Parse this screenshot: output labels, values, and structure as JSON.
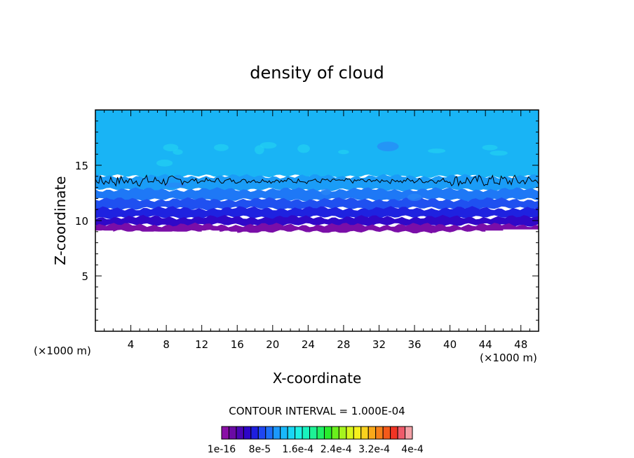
{
  "chart_data": {
    "type": "heatmap",
    "title": "density of cloud",
    "xlabel": "X-coordinate",
    "ylabel": "Z-coordinate",
    "x_unit": "(×1000 m)",
    "y_unit": "(×1000 m)",
    "xlim": [
      0,
      50
    ],
    "ylim": [
      0,
      20
    ],
    "x_ticks": [
      4,
      8,
      12,
      16,
      20,
      24,
      28,
      32,
      36,
      40,
      44,
      48
    ],
    "x_tick_labels": [
      "4",
      "8",
      "12",
      "16",
      "20",
      "24",
      "28",
      "32",
      "36",
      "40",
      "44",
      "48"
    ],
    "y_ticks": [
      5,
      10,
      15
    ],
    "y_tick_labels": [
      "5",
      "10",
      "15"
    ],
    "contour_interval_label": "CONTOUR INTERVAL = 1.000E-04",
    "colorbar": {
      "tick_labels": [
        "1e-16",
        "8e-5",
        "1.6e-4",
        "2.4e-4",
        "3.2e-4",
        "4e-4"
      ],
      "colors": [
        "#8a0fa6",
        "#6a0aa4",
        "#4a05b4",
        "#2d04c8",
        "#1e1ee0",
        "#1f46f2",
        "#1e6ef8",
        "#1b98fb",
        "#19b8fa",
        "#19d6f4",
        "#1ef0e4",
        "#18f2be",
        "#1ef296",
        "#20f064",
        "#28ec2c",
        "#6af01c",
        "#a6f41e",
        "#d8f61c",
        "#f6f01c",
        "#fad21e",
        "#f9a81a",
        "#f6801a",
        "#f45a1a",
        "#f03424",
        "#ee5a6a",
        "#f3a0a6"
      ]
    },
    "layers": [
      {
        "z_bottom": 14.0,
        "z_top": 20.0,
        "color": "#19b4f5"
      },
      {
        "z_bottom": 12.8,
        "z_top": 14.0,
        "color": "#1a9cf7"
      },
      {
        "z_bottom": 11.9,
        "z_top": 12.8,
        "color": "#1e78f6"
      },
      {
        "z_bottom": 11.1,
        "z_top": 11.9,
        "color": "#1f50f0"
      },
      {
        "z_bottom": 10.3,
        "z_top": 11.1,
        "color": "#1e22e0"
      },
      {
        "z_bottom": 9.6,
        "z_top": 10.3,
        "color": "#3008c8"
      },
      {
        "z_bottom": 9.0,
        "z_top": 9.6,
        "color": "#7a0ea8"
      }
    ],
    "cloud_base": [
      [
        0,
        9.1
      ],
      [
        2,
        9.0
      ],
      [
        4,
        9.0
      ],
      [
        6,
        9.0
      ],
      [
        8,
        9.0
      ],
      [
        10,
        9.0
      ],
      [
        12,
        9.1
      ],
      [
        14,
        9.0
      ],
      [
        16,
        8.9
      ],
      [
        18,
        8.9
      ],
      [
        20,
        8.8
      ],
      [
        22,
        8.8
      ],
      [
        24,
        8.9
      ],
      [
        26,
        8.9
      ],
      [
        28,
        8.9
      ],
      [
        30,
        8.9
      ],
      [
        32,
        8.9
      ],
      [
        34,
        8.8
      ],
      [
        36,
        8.7
      ],
      [
        38,
        8.9
      ],
      [
        40,
        8.9
      ],
      [
        42,
        9.0
      ],
      [
        44,
        9.1
      ],
      [
        46,
        9.2
      ],
      [
        48,
        9.2
      ],
      [
        50,
        9.4
      ]
    ],
    "contour_line": {
      "level": "1.000E-04",
      "z_mean": 13.6
    }
  }
}
